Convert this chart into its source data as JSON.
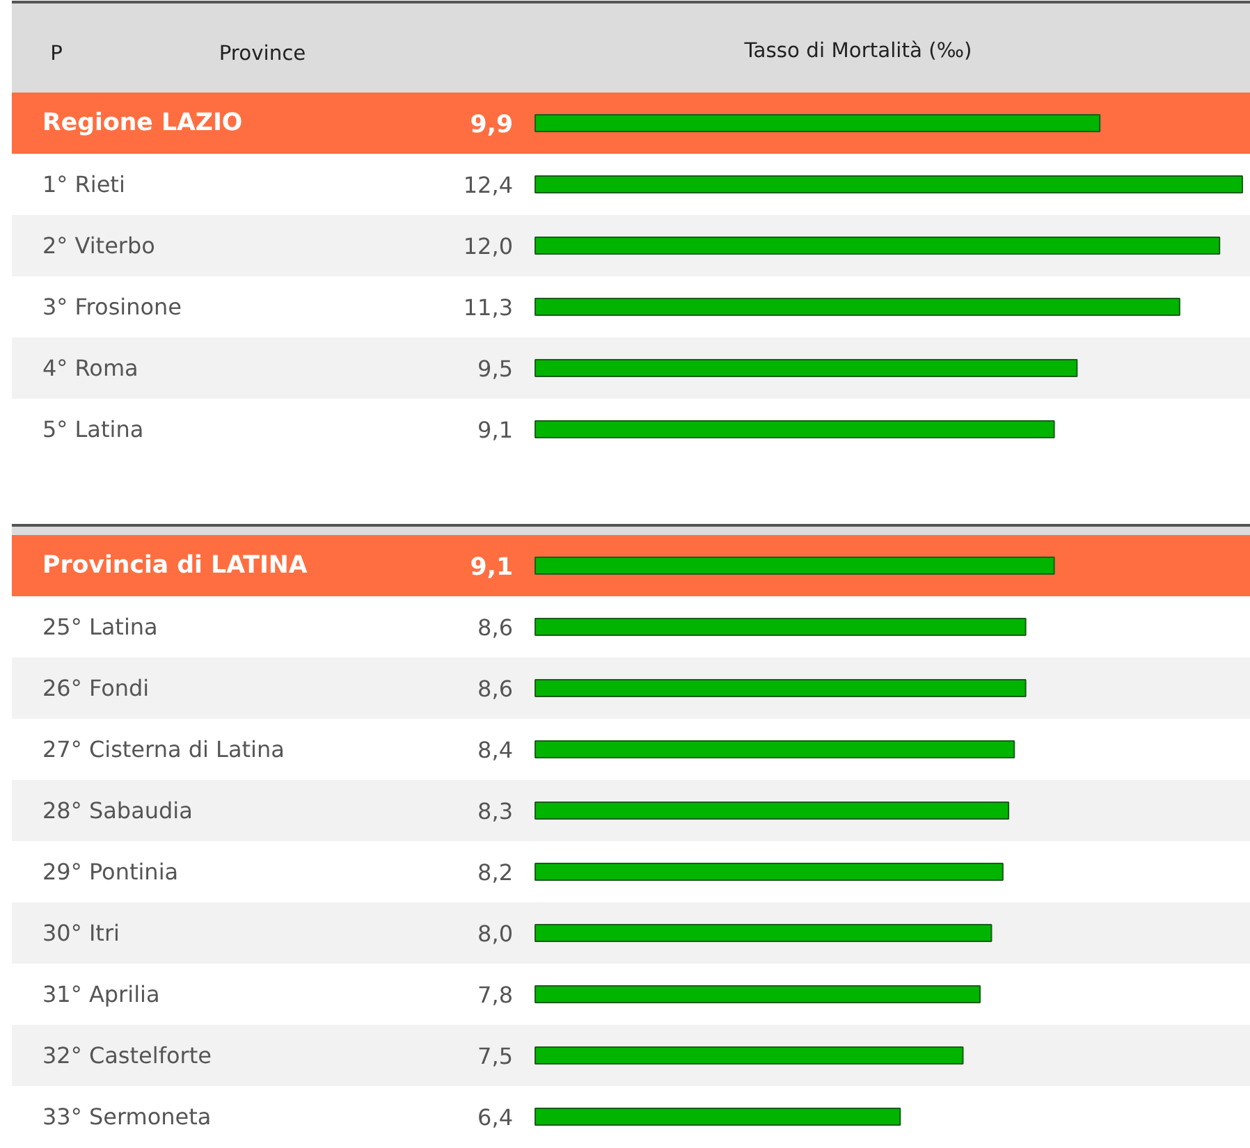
{
  "chart_data": [
    {
      "type": "bar",
      "orientation": "horizontal",
      "title": "Tasso di Mortalità (‰)",
      "ylabel": "Province",
      "annotations": [
        "P"
      ],
      "categories": [
        "Regione LAZIO",
        "1° Rieti",
        "2° Viterbo",
        "3° Frosinone",
        "4° Roma",
        "5° Latina"
      ],
      "values": [
        9.9,
        12.4,
        12.0,
        11.3,
        9.5,
        9.1
      ],
      "color": "#00b400",
      "value_labels": [
        "9,9",
        "12,4",
        "12,0",
        "11,3",
        "9,5",
        "9,1"
      ],
      "bands": [
        {
          "axis": "y",
          "from": "Regione LAZIO",
          "to": "Regione LAZIO",
          "color": "#ff6e40"
        }
      ]
    },
    {
      "type": "bar",
      "orientation": "horizontal",
      "categories": [
        "Provincia di LATINA",
        "25° Latina",
        "26° Fondi",
        "27° Cisterna di Latina",
        "28° Sabaudia",
        "29° Pontinia",
        "30° Itri",
        "31° Aprilia",
        "32° Castelforte",
        "33° Sermoneta"
      ],
      "values": [
        9.1,
        8.6,
        8.6,
        8.4,
        8.3,
        8.2,
        8.0,
        7.8,
        7.5,
        6.4
      ],
      "color": "#00b400",
      "value_labels": [
        "9,1",
        "8,6",
        "8,6",
        "8,4",
        "8,3",
        "8,2",
        "8,0",
        "7,8",
        "7,5",
        "6,4"
      ],
      "bands": [
        {
          "axis": "y",
          "from": "Provincia di LATINA",
          "to": "Provincia di LATINA",
          "color": "#ff6e40"
        }
      ]
    }
  ]
}
